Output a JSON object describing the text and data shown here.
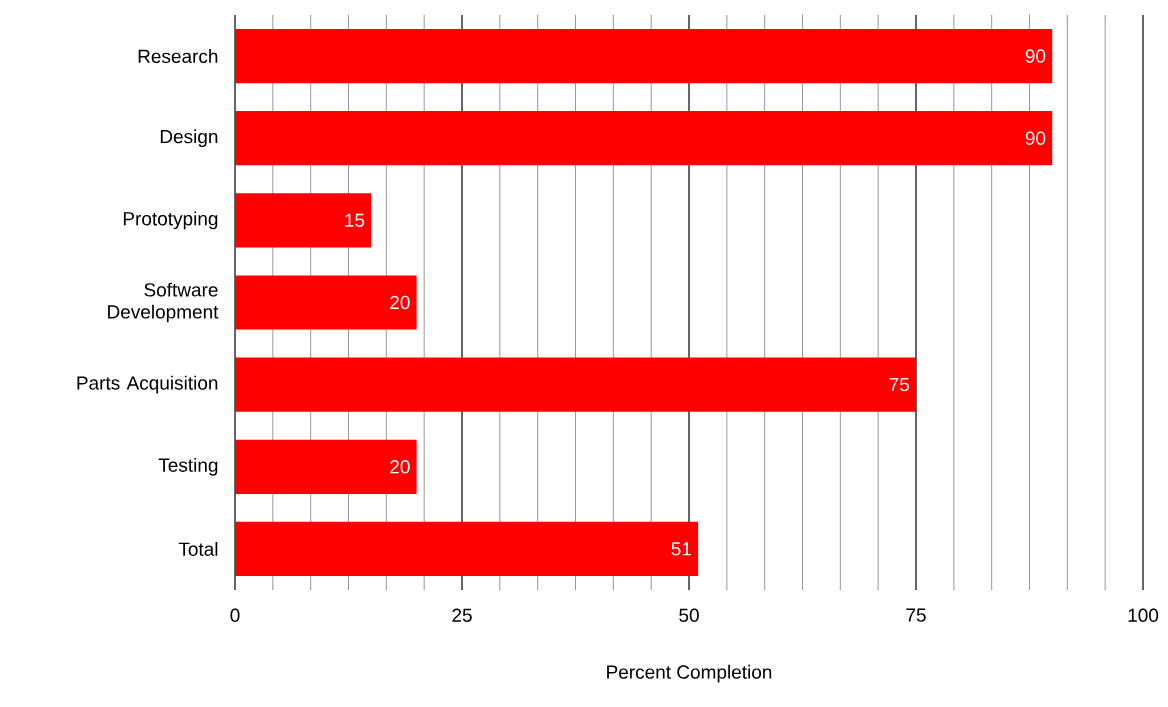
{
  "chart_data": {
    "type": "bar",
    "orientation": "horizontal",
    "xlabel": "Percent Completion",
    "categories": [
      "Research",
      "Design",
      "Prototyping",
      "Software Development",
      "Parts Acquisition",
      "Testing",
      "Total"
    ],
    "values": [
      90,
      90,
      15,
      20,
      75,
      20,
      51
    ],
    "color": "#ff0000",
    "xlim": [
      0,
      100
    ],
    "xticks": [
      0,
      25,
      50,
      75,
      100
    ],
    "grid": "x",
    "data_labels": true
  }
}
